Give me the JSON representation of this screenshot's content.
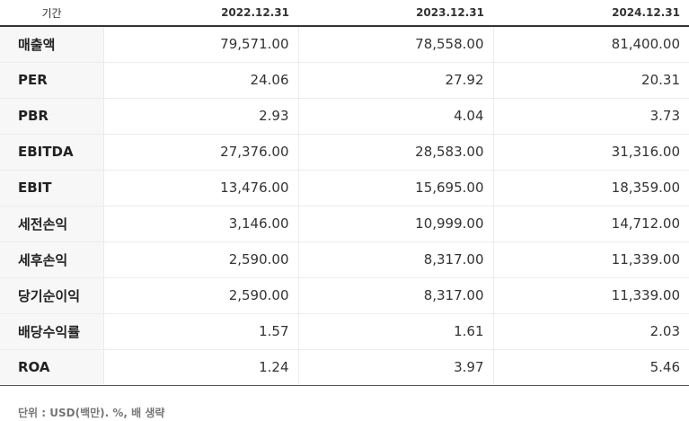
{
  "header": {
    "label": "기간",
    "periods": [
      "2022.12.31",
      "2023.12.31",
      "2024.12.31"
    ]
  },
  "rows": [
    {
      "label": "매출액",
      "values": [
        "79,571.00",
        "78,558.00",
        "81,400.00"
      ]
    },
    {
      "label": "PER",
      "values": [
        "24.06",
        "27.92",
        "20.31"
      ]
    },
    {
      "label": "PBR",
      "values": [
        "2.93",
        "4.04",
        "3.73"
      ]
    },
    {
      "label": "EBITDA",
      "values": [
        "27,376.00",
        "28,583.00",
        "31,316.00"
      ]
    },
    {
      "label": "EBIT",
      "values": [
        "13,476.00",
        "15,695.00",
        "18,359.00"
      ]
    },
    {
      "label": "세전손익",
      "values": [
        "3,146.00",
        "10,999.00",
        "14,712.00"
      ]
    },
    {
      "label": "세후손익",
      "values": [
        "2,590.00",
        "8,317.00",
        "11,339.00"
      ]
    },
    {
      "label": "당기순이익",
      "values": [
        "2,590.00",
        "8,317.00",
        "11,339.00"
      ]
    },
    {
      "label": "배당수익률",
      "values": [
        "1.57",
        "1.61",
        "2.03"
      ]
    },
    {
      "label": "ROA",
      "values": [
        "1.24",
        "3.97",
        "5.46"
      ]
    }
  ],
  "footer": {
    "unit_note": "단위 : USD(백만). %, 배 생략"
  }
}
